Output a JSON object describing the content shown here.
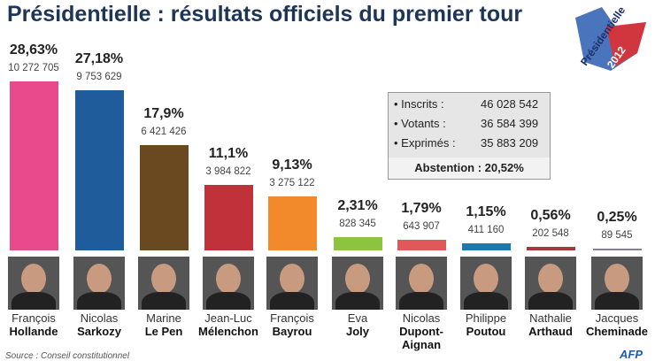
{
  "title": "Présidentielle : résultats officiels du premier tour",
  "logo": {
    "text": "Présidentielle",
    "year": "2012"
  },
  "chart_data": {
    "type": "bar",
    "title": "Présidentielle : résultats officiels du premier tour",
    "categories": [
      "François Hollande",
      "Nicolas Sarkozy",
      "Marine Le Pen",
      "Jean-Luc Mélenchon",
      "François Bayrou",
      "Eva Joly",
      "Nicolas Dupont-Aignan",
      "Philippe Poutou",
      "Nathalie Arthaud",
      "Jacques Cheminade"
    ],
    "values": [
      28.63,
      27.18,
      17.9,
      11.1,
      9.13,
      2.31,
      1.79,
      1.15,
      0.56,
      0.25
    ],
    "candidates": [
      {
        "first": "François",
        "last": "Hollande",
        "pct": "28,63%",
        "votes": "10 272 705",
        "value": 28.63,
        "color": "#e84a8c"
      },
      {
        "first": "Nicolas",
        "last": "Sarkozy",
        "pct": "27,18%",
        "votes": "9 753 629",
        "value": 27.18,
        "color": "#1f5c9c"
      },
      {
        "first": "Marine",
        "last": "Le Pen",
        "pct": "17,9%",
        "votes": "6 421 426",
        "value": 17.9,
        "color": "#6a4920"
      },
      {
        "first": "Jean-Luc",
        "last": "Mélenchon",
        "pct": "11,1%",
        "votes": "3 984 822",
        "value": 11.1,
        "color": "#c0313a"
      },
      {
        "first": "François",
        "last": "Bayrou",
        "pct": "9,13%",
        "votes": "3 275 122",
        "value": 9.13,
        "color": "#f28a2c"
      },
      {
        "first": "Eva",
        "last": "Joly",
        "pct": "2,31%",
        "votes": "828 345",
        "value": 2.31,
        "color": "#8cc43f"
      },
      {
        "first": "Nicolas",
        "last": "Dupont-\nAignan",
        "pct": "1,79%",
        "votes": "643 907",
        "value": 1.79,
        "color": "#e05858"
      },
      {
        "first": "Philippe",
        "last": "Poutou",
        "pct": "1,15%",
        "votes": "411 160",
        "value": 1.15,
        "color": "#1e77ad"
      },
      {
        "first": "Nathalie",
        "last": "Arthaud",
        "pct": "0,56%",
        "votes": "202 548",
        "value": 0.56,
        "color": "#a53838"
      },
      {
        "first": "Jacques",
        "last": "Cheminade",
        "pct": "0,25%",
        "votes": "89 545",
        "value": 0.25,
        "color": "#8a7d92"
      }
    ],
    "ylim": [
      0,
      30
    ]
  },
  "summary": {
    "rows": [
      {
        "label": "• Inscrits :",
        "value": "46 028 542"
      },
      {
        "label": "• Votants :",
        "value": "36 584 399"
      },
      {
        "label": "• Exprimés :",
        "value": "35 883 209"
      }
    ],
    "abstention": "Abstention : 20,52%"
  },
  "source": "Source : Conseil constitutionnel",
  "credit": "AFP"
}
